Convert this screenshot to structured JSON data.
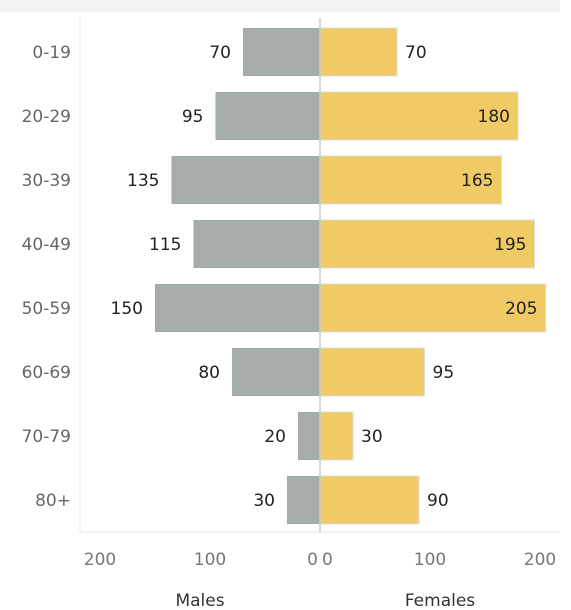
{
  "chart_data": {
    "type": "bar",
    "orientation": "horizontal",
    "layout": "population-pyramid",
    "categories": [
      "0-19",
      "20-29",
      "30-39",
      "40-49",
      "50-59",
      "60-69",
      "70-79",
      "80+"
    ],
    "series": [
      {
        "name": "Males",
        "values": [
          70,
          95,
          135,
          115,
          150,
          80,
          20,
          30
        ],
        "color": "#a6abab"
      },
      {
        "name": "Females",
        "values": [
          70,
          180,
          165,
          195,
          205,
          95,
          30,
          90
        ],
        "color": "#f0cb65"
      }
    ],
    "left_axis": {
      "title": "Males",
      "range": [
        200,
        0
      ],
      "ticks": [
        200,
        100,
        0
      ]
    },
    "right_axis": {
      "title": "Females",
      "range": [
        0,
        200
      ],
      "ticks": [
        0,
        100,
        200
      ]
    },
    "title": "",
    "grid": false,
    "legend": "none"
  }
}
